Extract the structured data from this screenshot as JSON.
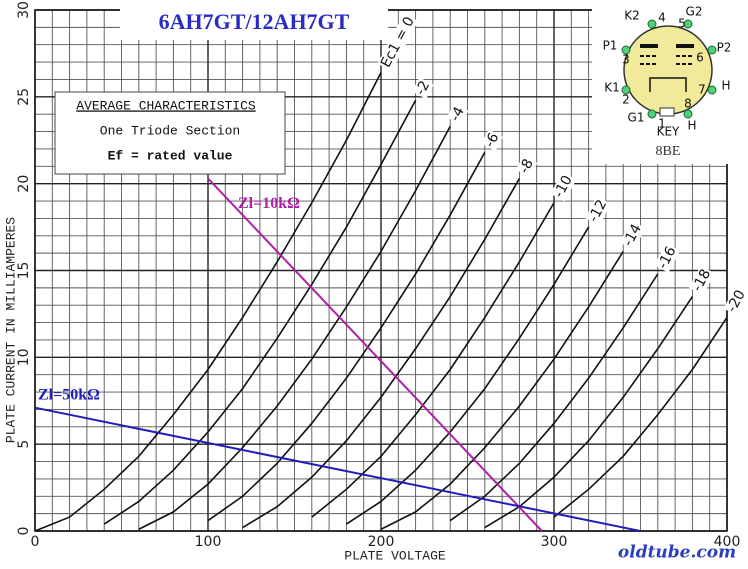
{
  "chart_data": {
    "type": "line",
    "title": "6AH7GT/12AH7GT",
    "box_texts": [
      "AVERAGE CHARACTERISTICS",
      "One Triode Section",
      "Ef =  rated value"
    ],
    "x_label": "PLATE VOLTAGE",
    "y_label": "PLATE CURRENT IN MILLIAMPERES",
    "watermark": "oldtube.com",
    "x": [
      0,
      20,
      40,
      60,
      80,
      100,
      120,
      140,
      160,
      180,
      200,
      220,
      240,
      260,
      280,
      300,
      320,
      340,
      360,
      380,
      400
    ],
    "series": [
      {
        "name": "Ec1 = 0",
        "color": "#111111",
        "values": [
          0,
          0.8,
          2.4,
          4.3,
          6.7,
          9.3,
          12.3,
          15.5,
          18.9,
          22.5,
          26.4,
          null,
          null,
          null,
          null,
          null,
          null,
          null,
          null,
          null,
          null
        ]
      },
      {
        "name": "-2",
        "color": "#111111",
        "values": [
          null,
          null,
          0.4,
          1.7,
          3.5,
          5.7,
          8.2,
          11.1,
          14.2,
          17.5,
          21.1,
          24.8,
          null,
          null,
          null,
          null,
          null,
          null,
          null,
          null,
          null
        ]
      },
      {
        "name": "-4",
        "color": "#111111",
        "values": [
          null,
          null,
          null,
          0.1,
          1.1,
          2.7,
          4.8,
          7.2,
          9.9,
          12.9,
          16.1,
          19.6,
          23.3,
          null,
          null,
          null,
          null,
          null,
          null,
          null,
          null
        ]
      },
      {
        "name": "-6",
        "color": "#111111",
        "values": [
          null,
          null,
          null,
          null,
          null,
          0.6,
          2.0,
          3.9,
          6.2,
          8.8,
          11.7,
          14.8,
          18.2,
          21.8,
          null,
          null,
          null,
          null,
          null,
          null,
          null
        ]
      },
      {
        "name": "-8",
        "color": "#111111",
        "values": [
          null,
          null,
          null,
          null,
          null,
          null,
          0.2,
          1.4,
          3.1,
          5.2,
          7.7,
          10.5,
          13.5,
          16.8,
          20.3,
          null,
          null,
          null,
          null,
          null,
          null
        ]
      },
      {
        "name": "-10",
        "color": "#111111",
        "values": [
          null,
          null,
          null,
          null,
          null,
          null,
          null,
          null,
          0.8,
          2.4,
          4.3,
          6.7,
          9.3,
          12.3,
          15.5,
          18.9,
          null,
          null,
          null,
          null,
          null
        ]
      },
      {
        "name": "-12",
        "color": "#111111",
        "values": [
          null,
          null,
          null,
          null,
          null,
          null,
          null,
          null,
          null,
          0.4,
          1.7,
          3.5,
          5.7,
          8.2,
          11.1,
          14.2,
          17.5,
          null,
          null,
          null,
          null
        ]
      },
      {
        "name": "-14",
        "color": "#111111",
        "values": [
          null,
          null,
          null,
          null,
          null,
          null,
          null,
          null,
          null,
          null,
          0.1,
          1.1,
          2.7,
          4.8,
          7.2,
          9.9,
          12.9,
          16.1,
          null,
          null,
          null
        ]
      },
      {
        "name": "-16",
        "color": "#111111",
        "values": [
          null,
          null,
          null,
          null,
          null,
          null,
          null,
          null,
          null,
          null,
          null,
          null,
          0.6,
          2.0,
          3.9,
          6.2,
          8.8,
          11.7,
          14.8,
          null,
          null
        ]
      },
      {
        "name": "-18",
        "color": "#111111",
        "values": [
          null,
          null,
          null,
          null,
          null,
          null,
          null,
          null,
          null,
          null,
          null,
          null,
          null,
          0.2,
          1.4,
          3.1,
          5.2,
          7.7,
          10.5,
          13.5,
          null
        ]
      },
      {
        "name": "-20",
        "color": "#111111",
        "values": [
          null,
          null,
          null,
          null,
          null,
          null,
          null,
          null,
          null,
          null,
          null,
          null,
          null,
          null,
          null,
          0.8,
          2.4,
          4.3,
          6.7,
          9.3,
          12.3
        ]
      }
    ],
    "load_lines": [
      {
        "name": "Zl=10kΩ",
        "color": "#b01fa6",
        "x": [
          100,
          293
        ],
        "values": [
          20.3,
          0
        ]
      },
      {
        "name": "Zl=50kΩ",
        "color": "#1f1fb8",
        "x": [
          0,
          350
        ],
        "values": [
          7.1,
          0
        ]
      }
    ],
    "xlim": [
      0,
      400
    ],
    "ylim": [
      0,
      30
    ],
    "xticks": [
      0,
      100,
      200,
      300,
      400
    ],
    "yticks": [
      0,
      5,
      10,
      15,
      20,
      25,
      30
    ],
    "grid": true,
    "minor_divisions": [
      10,
      5
    ],
    "base_diagram": {
      "pins": [
        {
          "label": "G1",
          "number": "1"
        },
        {
          "label": "K1",
          "number": "2"
        },
        {
          "label": "P1",
          "number": "3"
        },
        {
          "label": "K2",
          "number": "4"
        },
        {
          "label": "G2",
          "number": "5"
        },
        {
          "label": "P2",
          "number": "6"
        },
        {
          "label": "H",
          "number": "7"
        },
        {
          "label": "H",
          "number": "8"
        }
      ],
      "key": "KEY",
      "code": "8BE"
    }
  }
}
